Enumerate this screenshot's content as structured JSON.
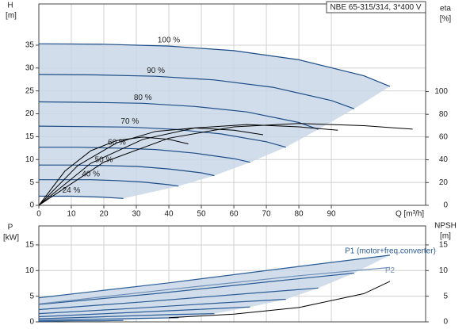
{
  "chart_data": [
    {
      "type": "line",
      "title": "NBE 65-315/314, 3*400 V",
      "x_label": "Q [m³/h]",
      "y_label": "H",
      "y_unit": "[m]",
      "y2_label": "eta",
      "y2_unit": "[%]",
      "xlim": [
        0,
        119
      ],
      "xticks": [
        0,
        10,
        20,
        30,
        40,
        50,
        60,
        70,
        80,
        90
      ],
      "ylim": [
        0,
        44
      ],
      "yticks": [
        0,
        5,
        10,
        15,
        20,
        25,
        30,
        35
      ],
      "y2lim": [
        0,
        177
      ],
      "y2ticks": [
        0,
        20,
        40,
        60,
        80,
        100
      ],
      "grid": true,
      "series": [
        {
          "name": "100 %",
          "color": "#1c4d86",
          "x": [
            0,
            20,
            40,
            60,
            80,
            100,
            108
          ],
          "values": [
            35.3,
            35.2,
            34.8,
            33.8,
            31.8,
            28.3,
            26
          ]
        },
        {
          "name": "90 %",
          "color": "#1c4d86",
          "x": [
            0,
            18,
            36,
            54,
            72,
            90,
            97
          ],
          "values": [
            28.6,
            28.5,
            28.2,
            27.4,
            25.8,
            22.9,
            21.1
          ]
        },
        {
          "name": "80 %",
          "color": "#1c4d86",
          "x": [
            0,
            16,
            32,
            48,
            64,
            80,
            86
          ],
          "values": [
            22.6,
            22.5,
            22.3,
            21.6,
            20.4,
            18.1,
            16.6
          ]
        },
        {
          "name": "70 %",
          "color": "#1c4d86",
          "x": [
            0,
            14,
            28,
            42,
            56,
            70,
            76
          ],
          "values": [
            17.3,
            17.2,
            17.1,
            16.6,
            15.6,
            13.9,
            12.7
          ]
        },
        {
          "name": "60 %",
          "color": "#1c4d86",
          "x": [
            0,
            12,
            24,
            36,
            48,
            60,
            65
          ],
          "values": [
            12.7,
            12.7,
            12.5,
            12.2,
            11.4,
            10.2,
            9.4
          ]
        },
        {
          "name": "50 %",
          "color": "#1c4d86",
          "x": [
            0,
            10,
            20,
            30,
            40,
            50,
            54
          ],
          "values": [
            8.8,
            8.8,
            8.7,
            8.5,
            7.95,
            7.1,
            6.5
          ]
        },
        {
          "name": "40 %",
          "color": "#1c4d86",
          "x": [
            0,
            8,
            16,
            24,
            32,
            40,
            43
          ],
          "values": [
            5.6,
            5.6,
            5.6,
            5.4,
            5.1,
            4.5,
            4.2
          ]
        },
        {
          "name": "24 %",
          "color": "#1c4d86",
          "x": [
            0,
            5,
            10,
            14,
            19,
            24,
            26
          ],
          "values": [
            2.0,
            2.0,
            2.0,
            1.9,
            1.8,
            1.6,
            1.5
          ]
        },
        {
          "color": "#000000",
          "axis": "y2",
          "x": [
            0,
            20,
            40,
            60,
            80,
            100,
            115
          ],
          "values": [
            0,
            38,
            59,
            69,
            72,
            70,
            67
          ]
        },
        {
          "color": "#000000",
          "axis": "y2",
          "x": [
            0,
            16,
            32,
            48,
            64,
            80,
            92
          ],
          "values": [
            0,
            37,
            58,
            68,
            71,
            69,
            66
          ]
        },
        {
          "color": "#000000",
          "axis": "y2",
          "x": [
            0,
            12,
            24,
            36,
            48,
            60,
            69
          ],
          "values": [
            0,
            35,
            55,
            65,
            68,
            66,
            62
          ]
        },
        {
          "color": "#000000",
          "axis": "y2",
          "x": [
            0,
            8,
            16,
            24,
            32,
            40,
            46
          ],
          "values": [
            0,
            30,
            48,
            57,
            60,
            58,
            54
          ]
        }
      ]
    },
    {
      "type": "line",
      "y_label": "P",
      "y_unit": "[kW]",
      "y2_label": "NPSH",
      "y2_unit": "[m]",
      "xlim": [
        0,
        119
      ],
      "ylim": [
        0,
        18.7
      ],
      "yticks": [
        0,
        5,
        10,
        15
      ],
      "y2lim": [
        0,
        18.7
      ],
      "y2ticks": [
        0,
        5,
        10,
        15
      ],
      "grid": true,
      "series": [
        {
          "name": "P1 (motor+freq.converter)",
          "color": "#2a5c96",
          "x": [
            0,
            40,
            80,
            108
          ],
          "values": [
            4.7,
            7.6,
            10.8,
            13
          ]
        },
        {
          "color": "#2a5c96",
          "x": [
            0,
            36,
            72,
            97
          ],
          "values": [
            3.4,
            5.5,
            7.9,
            9.5
          ]
        },
        {
          "color": "#2a5c96",
          "x": [
            0,
            32,
            64,
            86
          ],
          "values": [
            2.4,
            3.9,
            5.5,
            6.6
          ]
        },
        {
          "color": "#2a5c96",
          "x": [
            0,
            28,
            56,
            76
          ],
          "values": [
            1.6,
            2.6,
            3.7,
            4.4
          ]
        },
        {
          "color": "#2a5c96",
          "x": [
            0,
            24,
            48,
            65
          ],
          "values": [
            1.0,
            1.7,
            2.4,
            2.9
          ]
        },
        {
          "color": "#2a5c96",
          "x": [
            0,
            20,
            40,
            54
          ],
          "values": [
            0.6,
            1.0,
            1.4,
            1.6
          ]
        },
        {
          "color": "#2a5c96",
          "x": [
            0,
            16,
            32,
            43
          ],
          "values": [
            0.3,
            0.5,
            0.7,
            0.8
          ]
        },
        {
          "color": "#2a5c96",
          "x": [
            0,
            10,
            19,
            26
          ],
          "values": [
            0.1,
            0.2,
            0.2,
            0.3
          ]
        },
        {
          "name": "P2",
          "color": "#6f8fb8",
          "x": [
            0,
            40,
            80,
            108
          ],
          "values": [
            3.5,
            6.3,
            9.0,
            10.6
          ]
        },
        {
          "color": "#000000",
          "axis": "y2",
          "x": [
            40,
            60,
            80,
            100,
            108
          ],
          "values": [
            0.8,
            1.5,
            2.8,
            5.5,
            7.9
          ]
        }
      ]
    }
  ]
}
